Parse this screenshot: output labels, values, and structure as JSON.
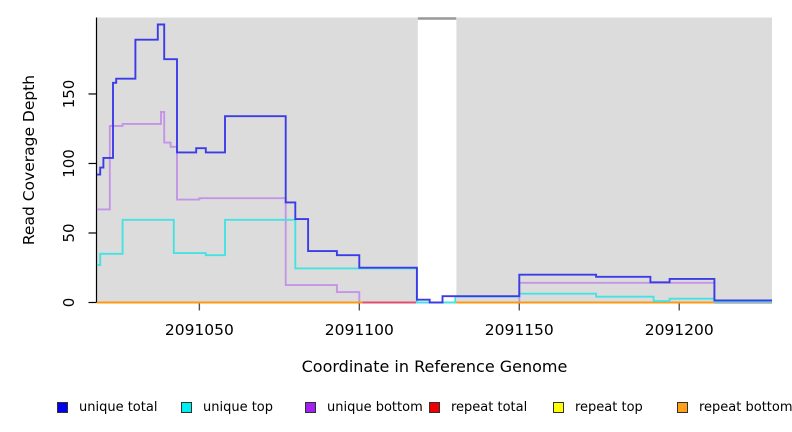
{
  "legend": {
    "items": [
      {
        "label": "unique total",
        "color": "#0000ee"
      },
      {
        "label": "unique top",
        "color": "#00eeee"
      },
      {
        "label": "unique bottom",
        "color": "#a221f0"
      },
      {
        "label": "repeat total",
        "color": "#ee0000"
      },
      {
        "label": "repeat top",
        "color": "#ffff00"
      },
      {
        "label": "repeat bottom",
        "color": "#ffa018"
      }
    ]
  },
  "chart_data": {
    "type": "line",
    "step": true,
    "title": "",
    "xlabel": "Coordinate in Reference Genome",
    "ylabel": "Read Coverage Depth",
    "xlim": [
      2091018,
      2091229
    ],
    "ylim": [
      0,
      205
    ],
    "grid": false,
    "plot_bg": "#dcdcdc",
    "x_ticks": [
      {
        "value": 2091050,
        "label": "2091050"
      },
      {
        "value": 2091100,
        "label": "2091100"
      },
      {
        "value": 2091150,
        "label": "2091150"
      },
      {
        "value": 2091200,
        "label": "2091200"
      }
    ],
    "y_ticks": [
      {
        "value": 0,
        "label": "0"
      },
      {
        "value": 50,
        "label": "50"
      },
      {
        "value": 100,
        "label": "100"
      },
      {
        "value": 150,
        "label": "150"
      }
    ],
    "bg_segments": [
      [
        2091018,
        2091118.3
      ],
      [
        2091130.3,
        2091229
      ]
    ],
    "gap_band": {
      "x0": 2091118.3,
      "x1": 2091130.3,
      "color": "#ffffff",
      "top_line_color": "#999999"
    },
    "series": [
      {
        "name": "repeat top",
        "legend_color": "#ffff00",
        "color": "#ffee00",
        "segments": [
          [
            [
              2091018,
              0
            ],
            [
              2091229,
              0
            ]
          ]
        ]
      },
      {
        "name": "unique bottom",
        "legend_color": "#a221f0",
        "color": "#c495e6",
        "segments": [
          [
            [
              2091018,
              67
            ],
            [
              2091022,
              127
            ],
            [
              2091026,
              128.5
            ],
            [
              2091038,
              137
            ],
            [
              2091039,
              115
            ],
            [
              2091041,
              112
            ],
            [
              2091043,
              74
            ],
            [
              2091050,
              75
            ],
            [
              2091077,
              12.5
            ],
            [
              2091093,
              7.5
            ],
            [
              2091100,
              0
            ],
            [
              2091150,
              14.2
            ],
            [
              2091211,
              0
            ],
            [
              2091229,
              0
            ]
          ]
        ]
      },
      {
        "name": "repeat total",
        "legend_color": "#ee0000",
        "color": "#e0506e",
        "segments": [
          [
            [
              2091018,
              0
            ],
            [
              2091229,
              0
            ]
          ]
        ]
      },
      {
        "name": "repeat bottom",
        "legend_color": "#ffa018",
        "color": "#ff9912",
        "segments": [
          [
            [
              2091018,
              0
            ],
            [
              2091101,
              0
            ]
          ],
          [
            [
              2091130,
              0
            ],
            [
              2091211,
              0
            ]
          ]
        ]
      },
      {
        "name": "unique top",
        "legend_color": "#00eeee",
        "color": "#46e2e2",
        "segments": [
          [
            [
              2091018,
              27
            ],
            [
              2091019,
              35
            ],
            [
              2091026,
              59.5
            ],
            [
              2091042,
              35.5
            ],
            [
              2091052,
              34
            ],
            [
              2091058,
              59.5
            ],
            [
              2091080,
              24.5
            ],
            [
              2091118,
              0
            ],
            [
              2091130,
              4.3
            ],
            [
              2091150,
              6.3
            ],
            [
              2091174,
              4.2
            ],
            [
              2091192,
              1
            ],
            [
              2091197,
              2.7
            ],
            [
              2091211,
              0.4
            ],
            [
              2091229,
              0.4
            ]
          ]
        ]
      },
      {
        "name": "unique total",
        "legend_color": "#0000ee",
        "color": "#3c3ce6",
        "segments": [
          [
            [
              2091018,
              92
            ],
            [
              2091019,
              97
            ],
            [
              2091020,
              104
            ],
            [
              2091023,
              158
            ],
            [
              2091024,
              161
            ],
            [
              2091030,
              189
            ],
            [
              2091037,
              200
            ],
            [
              2091039,
              175
            ],
            [
              2091043,
              108
            ],
            [
              2091049,
              111
            ],
            [
              2091052,
              108
            ],
            [
              2091058,
              134
            ],
            [
              2091077,
              72
            ],
            [
              2091080,
              60
            ],
            [
              2091084,
              37
            ],
            [
              2091093,
              34
            ],
            [
              2091100,
              25
            ],
            [
              2091118,
              2
            ],
            [
              2091122,
              0
            ],
            [
              2091126,
              4.5
            ],
            [
              2091150,
              20
            ],
            [
              2091174,
              18.5
            ],
            [
              2091191,
              14.5
            ],
            [
              2091197,
              17
            ],
            [
              2091211,
              1.5
            ],
            [
              2091229,
              1.5
            ]
          ]
        ]
      }
    ]
  }
}
